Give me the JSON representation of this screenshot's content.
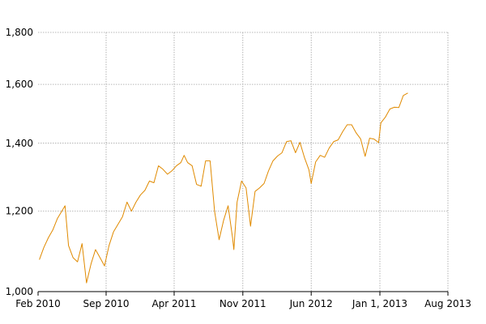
{
  "chart_data": {
    "type": "line",
    "title": "",
    "xlabel": "",
    "ylabel": "",
    "y_scale": "log",
    "grid": true,
    "legend": "none",
    "xlim": [
      "2010-02-01",
      "2013-08-01"
    ],
    "ylim": [
      1000,
      1800
    ],
    "x_ticks": [
      {
        "date": "2010-02-01",
        "label": "Feb 2010"
      },
      {
        "date": "2010-09-01",
        "label": "Sep 2010"
      },
      {
        "date": "2011-04-01",
        "label": "Apr 2011"
      },
      {
        "date": "2011-11-01",
        "label": "Nov 2011"
      },
      {
        "date": "2012-06-01",
        "label": "Jun 2012"
      },
      {
        "date": "2013-01-01",
        "label": "Jan 1, 2013"
      },
      {
        "date": "2013-08-01",
        "label": "Aug 2013"
      }
    ],
    "y_ticks": [
      {
        "value": 1000,
        "label": "1,000"
      },
      {
        "value": 1200,
        "label": "1,200"
      },
      {
        "value": 1400,
        "label": "1,400"
      },
      {
        "value": 1600,
        "label": "1,600"
      },
      {
        "value": 1800,
        "label": "1,800"
      }
    ],
    "series": [
      {
        "color": "#e08a00",
        "points": [
          [
            "2010-02-05",
            1075
          ],
          [
            "2010-02-19",
            1105
          ],
          [
            "2010-03-05",
            1130
          ],
          [
            "2010-03-19",
            1150
          ],
          [
            "2010-04-02",
            1180
          ],
          [
            "2010-04-16",
            1200
          ],
          [
            "2010-04-26",
            1215
          ],
          [
            "2010-05-07",
            1110
          ],
          [
            "2010-05-21",
            1080
          ],
          [
            "2010-06-04",
            1070
          ],
          [
            "2010-06-18",
            1115
          ],
          [
            "2010-07-02",
            1020
          ],
          [
            "2010-07-16",
            1065
          ],
          [
            "2010-07-30",
            1100
          ],
          [
            "2010-08-13",
            1080
          ],
          [
            "2010-08-27",
            1060
          ],
          [
            "2010-09-10",
            1110
          ],
          [
            "2010-09-24",
            1145
          ],
          [
            "2010-10-08",
            1165
          ],
          [
            "2010-10-22",
            1185
          ],
          [
            "2010-11-05",
            1225
          ],
          [
            "2010-11-19",
            1200
          ],
          [
            "2010-12-03",
            1225
          ],
          [
            "2010-12-17",
            1245
          ],
          [
            "2010-12-31",
            1258
          ],
          [
            "2011-01-14",
            1285
          ],
          [
            "2011-01-28",
            1280
          ],
          [
            "2011-02-11",
            1330
          ],
          [
            "2011-02-25",
            1320
          ],
          [
            "2011-03-11",
            1305
          ],
          [
            "2011-03-25",
            1315
          ],
          [
            "2011-04-08",
            1330
          ],
          [
            "2011-04-22",
            1340
          ],
          [
            "2011-05-02",
            1362
          ],
          [
            "2011-05-13",
            1340
          ],
          [
            "2011-05-27",
            1330
          ],
          [
            "2011-06-10",
            1275
          ],
          [
            "2011-06-24",
            1270
          ],
          [
            "2011-07-08",
            1345
          ],
          [
            "2011-07-22",
            1345
          ],
          [
            "2011-08-05",
            1200
          ],
          [
            "2011-08-19",
            1125
          ],
          [
            "2011-09-02",
            1175
          ],
          [
            "2011-09-16",
            1215
          ],
          [
            "2011-09-30",
            1130
          ],
          [
            "2011-10-04",
            1100
          ],
          [
            "2011-10-14",
            1225
          ],
          [
            "2011-10-28",
            1285
          ],
          [
            "2011-11-11",
            1265
          ],
          [
            "2011-11-25",
            1160
          ],
          [
            "2011-12-09",
            1255
          ],
          [
            "2011-12-23",
            1265
          ],
          [
            "2012-01-06",
            1278
          ],
          [
            "2012-01-20",
            1315
          ],
          [
            "2012-02-03",
            1345
          ],
          [
            "2012-02-17",
            1360
          ],
          [
            "2012-03-02",
            1370
          ],
          [
            "2012-03-16",
            1405
          ],
          [
            "2012-03-30",
            1408
          ],
          [
            "2012-04-13",
            1370
          ],
          [
            "2012-04-27",
            1403
          ],
          [
            "2012-05-11",
            1355
          ],
          [
            "2012-05-25",
            1318
          ],
          [
            "2012-06-01",
            1278
          ],
          [
            "2012-06-15",
            1342
          ],
          [
            "2012-06-29",
            1362
          ],
          [
            "2012-07-13",
            1356
          ],
          [
            "2012-07-27",
            1385
          ],
          [
            "2012-08-10",
            1405
          ],
          [
            "2012-08-24",
            1411
          ],
          [
            "2012-09-07",
            1437
          ],
          [
            "2012-09-21",
            1460
          ],
          [
            "2012-10-05",
            1460
          ],
          [
            "2012-10-19",
            1433
          ],
          [
            "2012-11-02",
            1414
          ],
          [
            "2012-11-16",
            1359
          ],
          [
            "2012-11-30",
            1416
          ],
          [
            "2012-12-14",
            1413
          ],
          [
            "2012-12-28",
            1402
          ],
          [
            "2013-01-04",
            1466
          ],
          [
            "2013-01-18",
            1485
          ],
          [
            "2013-02-01",
            1513
          ],
          [
            "2013-02-15",
            1519
          ],
          [
            "2013-03-01",
            1518
          ],
          [
            "2013-03-15",
            1560
          ],
          [
            "2013-03-29",
            1569
          ]
        ]
      }
    ]
  }
}
